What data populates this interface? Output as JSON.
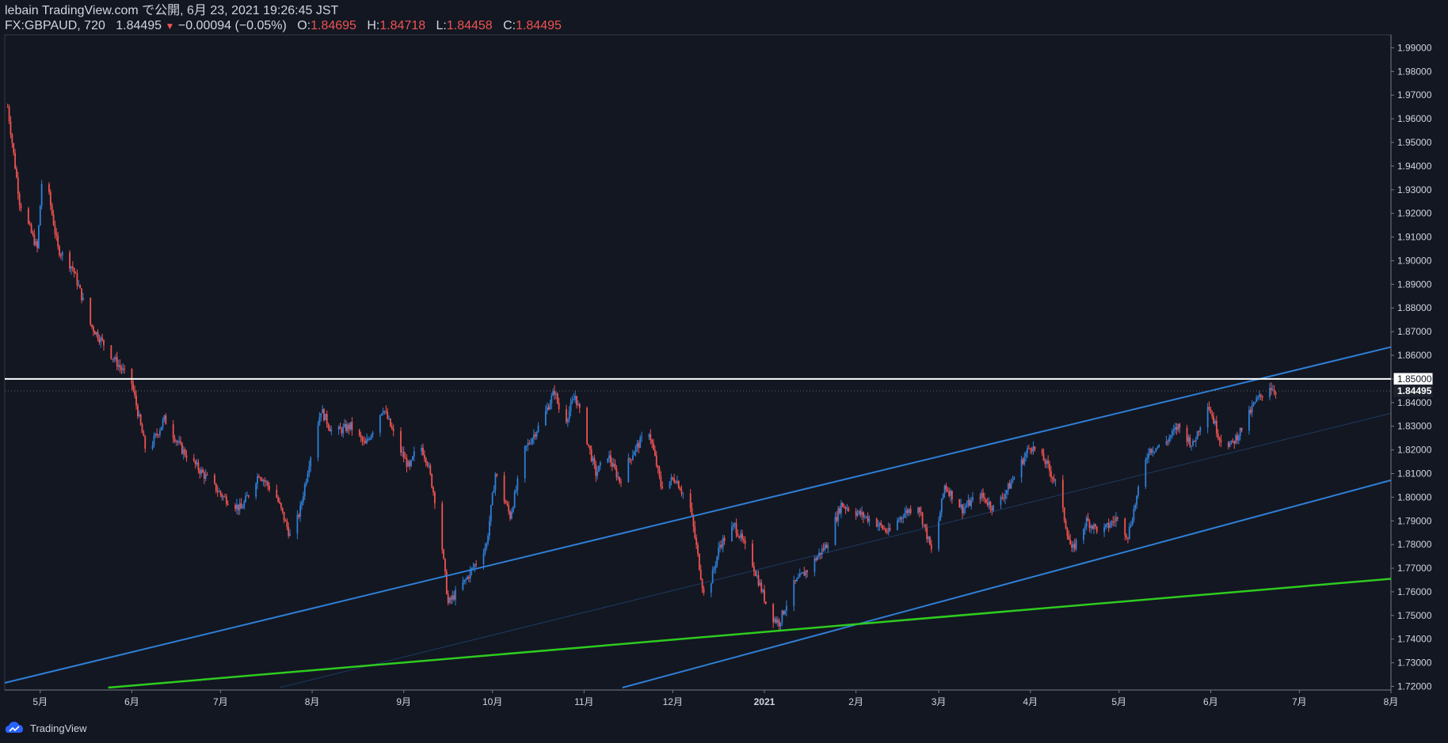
{
  "header": {
    "line1": "lebain TradingView.com で公開, 6月 23, 2021 19:26:45 JST",
    "symbol": "FX:GBPAUD, 720",
    "last": "1.84495",
    "change": "−0.00094 (−0.05%)",
    "o_label": "O:",
    "o": "1.84695",
    "h_label": "H:",
    "h": "1.84718",
    "l_label": "L:",
    "l": "1.84458",
    "c_label": "C:",
    "c": "1.84495"
  },
  "footer": {
    "brand": "TradingView",
    "logo_icon": "tradingview-logo-icon"
  },
  "colors": {
    "background": "#131722",
    "up": "#2f7fd6",
    "down": "#ef5350",
    "channel": "#2f7fd6",
    "support": "#2ecc1f",
    "level": "#ffffff",
    "axis_text": "#d1d4dc"
  },
  "chart_data": {
    "type": "candlestick",
    "symbol": "FX:GBPAUD",
    "interval": "720",
    "ylim": [
      1.7185,
      1.9955
    ],
    "y_ticks": [
      "1.72000",
      "1.73000",
      "1.74000",
      "1.75000",
      "1.76000",
      "1.77000",
      "1.78000",
      "1.79000",
      "1.80000",
      "1.81000",
      "1.82000",
      "1.83000",
      "1.84000",
      "1.85000",
      "1.86000",
      "1.87000",
      "1.88000",
      "1.89000",
      "1.90000",
      "1.91000",
      "1.92000",
      "1.93000",
      "1.94000",
      "1.95000",
      "1.96000",
      "1.97000",
      "1.98000",
      "1.99000"
    ],
    "x_ticks": [
      {
        "label": "5月",
        "date": "2020-05-01"
      },
      {
        "label": "6月",
        "date": "2020-06-01"
      },
      {
        "label": "7月",
        "date": "2020-07-01"
      },
      {
        "label": "8月",
        "date": "2020-08-01"
      },
      {
        "label": "9月",
        "date": "2020-09-01"
      },
      {
        "label": "10月",
        "date": "2020-10-01"
      },
      {
        "label": "11月",
        "date": "2020-11-01"
      },
      {
        "label": "12月",
        "date": "2020-12-01"
      },
      {
        "label": "2021",
        "date": "2021-01-01"
      },
      {
        "label": "2月",
        "date": "2021-02-01"
      },
      {
        "label": "3月",
        "date": "2021-03-01"
      },
      {
        "label": "4月",
        "date": "2021-04-01"
      },
      {
        "label": "5月",
        "date": "2021-05-01"
      },
      {
        "label": "6月",
        "date": "2021-06-01"
      },
      {
        "label": "7月",
        "date": "2021-07-01"
      },
      {
        "label": "8月",
        "date": "2021-08-01"
      }
    ],
    "price_path": [
      [
        "2020-04-20",
        1.965
      ],
      [
        "2020-04-24",
        1.925
      ],
      [
        "2020-04-30",
        1.905
      ],
      [
        "2020-05-02",
        1.942
      ],
      [
        "2020-05-07",
        1.905
      ],
      [
        "2020-05-12",
        1.897
      ],
      [
        "2020-05-18",
        1.873
      ],
      [
        "2020-05-24",
        1.862
      ],
      [
        "2020-06-01",
        1.848
      ],
      [
        "2020-06-06",
        1.818
      ],
      [
        "2020-06-12",
        1.833
      ],
      [
        "2020-06-18",
        1.82
      ],
      [
        "2020-06-25",
        1.81
      ],
      [
        "2020-07-02",
        1.8
      ],
      [
        "2020-07-08",
        1.795
      ],
      [
        "2020-07-14",
        1.81
      ],
      [
        "2020-07-20",
        1.8
      ],
      [
        "2020-07-25",
        1.782
      ],
      [
        "2020-07-28",
        1.795
      ],
      [
        "2020-07-31",
        1.815
      ],
      [
        "2020-08-04",
        1.837
      ],
      [
        "2020-08-08",
        1.827
      ],
      [
        "2020-08-14",
        1.83
      ],
      [
        "2020-08-19",
        1.822
      ],
      [
        "2020-08-25",
        1.838
      ],
      [
        "2020-08-30",
        1.822
      ],
      [
        "2020-09-03",
        1.812
      ],
      [
        "2020-09-06",
        1.824
      ],
      [
        "2020-09-09",
        1.815
      ],
      [
        "2020-09-13",
        1.79
      ],
      [
        "2020-09-16",
        1.755
      ],
      [
        "2020-09-22",
        1.765
      ],
      [
        "2020-09-29",
        1.78
      ],
      [
        "2020-10-02",
        1.81
      ],
      [
        "2020-10-07",
        1.792
      ],
      [
        "2020-10-12",
        1.82
      ],
      [
        "2020-10-18",
        1.833
      ],
      [
        "2020-10-22",
        1.845
      ],
      [
        "2020-10-25",
        1.83
      ],
      [
        "2020-10-29",
        1.843
      ],
      [
        "2020-11-05",
        1.81
      ],
      [
        "2020-11-09",
        1.818
      ],
      [
        "2020-11-13",
        1.807
      ],
      [
        "2020-11-18",
        1.82
      ],
      [
        "2020-11-23",
        1.828
      ],
      [
        "2020-11-27",
        1.805
      ],
      [
        "2020-12-02",
        1.808
      ],
      [
        "2020-12-07",
        1.795
      ],
      [
        "2020-12-12",
        1.755
      ],
      [
        "2020-12-17",
        1.78
      ],
      [
        "2020-12-22",
        1.788
      ],
      [
        "2020-12-28",
        1.772
      ],
      [
        "2021-01-03",
        1.75
      ],
      [
        "2021-01-06",
        1.747
      ],
      [
        "2021-01-11",
        1.763
      ],
      [
        "2021-01-16",
        1.77
      ],
      [
        "2021-01-22",
        1.78
      ],
      [
        "2021-01-27",
        1.797
      ],
      [
        "2021-02-02",
        1.793
      ],
      [
        "2021-02-07",
        1.79
      ],
      [
        "2021-02-12",
        1.785
      ],
      [
        "2021-02-17",
        1.793
      ],
      [
        "2021-02-22",
        1.797
      ],
      [
        "2021-02-27",
        1.775
      ],
      [
        "2021-03-03",
        1.805
      ],
      [
        "2021-03-09",
        1.795
      ],
      [
        "2021-03-15",
        1.801
      ],
      [
        "2021-03-20",
        1.795
      ],
      [
        "2021-03-25",
        1.805
      ],
      [
        "2021-04-01",
        1.822
      ],
      [
        "2021-04-06",
        1.815
      ],
      [
        "2021-04-10",
        1.805
      ],
      [
        "2021-04-15",
        1.777
      ],
      [
        "2021-04-20",
        1.79
      ],
      [
        "2021-04-25",
        1.785
      ],
      [
        "2021-04-30",
        1.791
      ],
      [
        "2021-05-04",
        1.784
      ],
      [
        "2021-05-07",
        1.8
      ],
      [
        "2021-05-11",
        1.82
      ],
      [
        "2021-05-16",
        1.822
      ],
      [
        "2021-05-21",
        1.83
      ],
      [
        "2021-05-26",
        1.822
      ],
      [
        "2021-05-31",
        1.84
      ],
      [
        "2021-06-04",
        1.825
      ],
      [
        "2021-06-08",
        1.822
      ],
      [
        "2021-06-12",
        1.83
      ],
      [
        "2021-06-16",
        1.84
      ],
      [
        "2021-06-21",
        1.847
      ],
      [
        "2021-06-23",
        1.84495
      ]
    ],
    "lines": [
      {
        "name": "channel-upper",
        "color": "channel",
        "p1": [
          "2020-04-19",
          1.7215
        ],
        "p2": [
          "2021-08-01",
          1.8635
        ]
      },
      {
        "name": "channel-lower",
        "color": "channel",
        "p1": [
          "2020-11-14",
          1.7195
        ],
        "p2": [
          "2021-08-01",
          1.8072
        ]
      },
      {
        "name": "channel-mid",
        "color": "channel",
        "p1": [
          "2020-07-21",
          1.7195
        ],
        "p2": [
          "2021-08-01",
          1.8355
        ]
      },
      {
        "name": "support",
        "color": "support",
        "p1": [
          "2020-05-24",
          1.7195
        ],
        "p2": [
          "2021-08-01",
          1.7655
        ]
      },
      {
        "name": "level",
        "color": "level",
        "horizontal": 1.85
      }
    ],
    "price_labels": {
      "level": "1.85000",
      "last": "1.84495"
    }
  }
}
